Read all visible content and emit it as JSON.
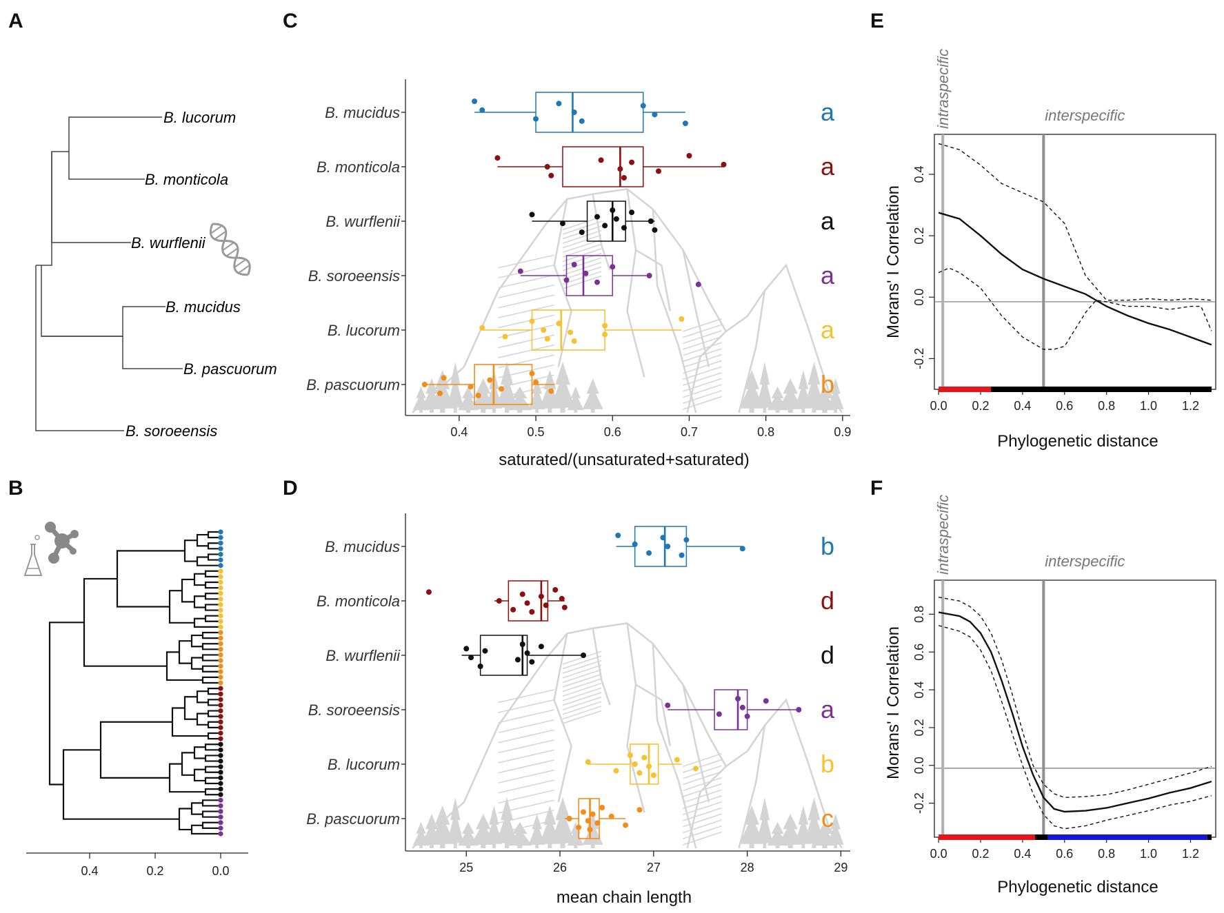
{
  "colors": {
    "mucidus": "#1f77b4",
    "monticola": "#8b1010",
    "wurflenii": "#111111",
    "soroeensis": "#7b3294",
    "lucorum": "#f5c232",
    "pascuorum": "#f28c1a",
    "sig_red": "#e8141c",
    "sig_blue": "#1515e0",
    "sig_black": "#000000",
    "ref_line": "#909090"
  },
  "panels": {
    "A": {
      "letter": "A"
    },
    "B": {
      "letter": "B"
    },
    "C": {
      "letter": "C"
    },
    "D": {
      "letter": "D"
    },
    "E": {
      "letter": "E"
    },
    "F": {
      "letter": "F"
    }
  },
  "tree_A": {
    "species": [
      {
        "key": "lucorum",
        "label": "B. lucorum"
      },
      {
        "key": "monticola",
        "label": "B. monticola"
      },
      {
        "key": "wurflenii",
        "label": "B. wurflenii"
      },
      {
        "key": "mucidus",
        "label": "B. mucidus"
      },
      {
        "key": "pascuorum",
        "label": "B. pascuorum"
      },
      {
        "key": "soroeensis",
        "label": "B. soroeensis"
      }
    ],
    "icon": "dna-helix-icon"
  },
  "tree_B": {
    "icon": "molecule-flask-icon",
    "x_ticks": [
      "0.4",
      "0.2",
      "0.0"
    ],
    "tip_groups": [
      {
        "key": "mucidus",
        "count": 7
      },
      {
        "key": "lucorum",
        "count": 11
      },
      {
        "key": "pascuorum",
        "count": 10
      },
      {
        "key": "monticola",
        "count": 10
      },
      {
        "key": "wurflenii",
        "count": 10
      },
      {
        "key": "soroeensis",
        "count": 7
      }
    ]
  },
  "chart_data": [
    {
      "id": "C",
      "type": "box",
      "xlabel": "saturated/(unsaturated+saturated)",
      "xlim": [
        0.33,
        0.91
      ],
      "x_ticks": [
        0.4,
        0.5,
        0.6,
        0.7,
        0.8,
        0.9
      ],
      "x_tick_labels": [
        "0.4",
        "0.5",
        "0.6",
        "0.7",
        "0.8",
        "0.9"
      ],
      "series": [
        {
          "key": "mucidus",
          "name": "B. mucidus",
          "letter": "a",
          "box": {
            "wl": 0.42,
            "q1": 0.5,
            "med": 0.548,
            "q3": 0.64,
            "wh": 0.695
          },
          "points": [
            0.42,
            0.43,
            0.5,
            0.53,
            0.55,
            0.56,
            0.64,
            0.655,
            0.695
          ]
        },
        {
          "key": "monticola",
          "name": "B. monticola",
          "letter": "a",
          "box": {
            "wl": 0.45,
            "q1": 0.535,
            "med": 0.61,
            "q3": 0.64,
            "wh": 0.745
          },
          "points": [
            0.45,
            0.515,
            0.52,
            0.585,
            0.61,
            0.615,
            0.625,
            0.66,
            0.7,
            0.745
          ]
        },
        {
          "key": "wurflenii",
          "name": "B. wurflenii",
          "letter": "a",
          "box": {
            "wl": 0.495,
            "q1": 0.567,
            "med": 0.6,
            "q3": 0.617,
            "wh": 0.655
          },
          "points": [
            0.495,
            0.535,
            0.56,
            0.58,
            0.59,
            0.6,
            0.605,
            0.615,
            0.625,
            0.65,
            0.655
          ]
        },
        {
          "key": "soroeensis",
          "name": "B. soroeensis",
          "letter": "a",
          "box": {
            "wl": 0.48,
            "q1": 0.54,
            "med": 0.562,
            "q3": 0.6,
            "wh": 0.648
          },
          "points": [
            0.48,
            0.54,
            0.55,
            0.565,
            0.58,
            0.6,
            0.648,
            0.712
          ]
        },
        {
          "key": "lucorum",
          "name": "B. lucorum",
          "letter": "a",
          "box": {
            "wl": 0.43,
            "q1": 0.495,
            "med": 0.533,
            "q3": 0.59,
            "wh": 0.69
          },
          "points": [
            0.43,
            0.46,
            0.495,
            0.51,
            0.515,
            0.53,
            0.545,
            0.55,
            0.59,
            0.59,
            0.69
          ]
        },
        {
          "key": "pascuorum",
          "name": "B. pascuorum",
          "letter": "b",
          "box": {
            "wl": 0.355,
            "q1": 0.42,
            "med": 0.445,
            "q3": 0.495,
            "wh": 0.525
          },
          "points": [
            0.355,
            0.375,
            0.38,
            0.415,
            0.425,
            0.44,
            0.455,
            0.495,
            0.5,
            0.52
          ]
        }
      ]
    },
    {
      "id": "D",
      "type": "box",
      "xlabel": "mean chain length",
      "xlim": [
        24.35,
        29.1
      ],
      "x_ticks": [
        25,
        26,
        27,
        28,
        29
      ],
      "x_tick_labels": [
        "25",
        "26",
        "27",
        "28",
        "29"
      ],
      "series": [
        {
          "key": "mucidus",
          "name": "B. mucidus",
          "letter": "b",
          "box": {
            "wl": 26.6,
            "q1": 26.8,
            "med": 27.12,
            "q3": 27.35,
            "wh": 27.95
          },
          "points": [
            26.62,
            26.8,
            26.95,
            27.1,
            27.15,
            27.3,
            27.35,
            27.95
          ]
        },
        {
          "key": "monticola",
          "name": "B. monticola",
          "letter": "d",
          "box": {
            "wl": 25.3,
            "q1": 25.45,
            "med": 25.8,
            "q3": 25.87,
            "wh": 26.05
          },
          "points": [
            24.6,
            25.35,
            25.5,
            25.6,
            25.65,
            25.7,
            25.8,
            25.85,
            25.95,
            26.02,
            26.05
          ]
        },
        {
          "key": "wurflenii",
          "name": "B. wurflenii",
          "letter": "d",
          "box": {
            "wl": 24.95,
            "q1": 25.15,
            "med": 25.6,
            "q3": 25.65,
            "wh": 26.25
          },
          "points": [
            25.0,
            25.05,
            25.15,
            25.2,
            25.55,
            25.6,
            25.65,
            25.7,
            25.8,
            26.25
          ]
        },
        {
          "key": "soroeensis",
          "name": "B. soroeensis",
          "letter": "a",
          "box": {
            "wl": 27.15,
            "q1": 27.65,
            "med": 27.9,
            "q3": 28.0,
            "wh": 28.55
          },
          "points": [
            27.15,
            27.7,
            27.9,
            27.95,
            28.0,
            28.2,
            28.55
          ]
        },
        {
          "key": "lucorum",
          "name": "B. lucorum",
          "letter": "b",
          "box": {
            "wl": 26.3,
            "q1": 26.75,
            "med": 26.95,
            "q3": 27.05,
            "wh": 27.3
          },
          "points": [
            26.3,
            26.6,
            26.75,
            26.8,
            26.85,
            26.9,
            26.95,
            27.0,
            27.25,
            27.45
          ]
        },
        {
          "key": "pascuorum",
          "name": "B. pascuorum",
          "letter": "c",
          "box": {
            "wl": 26.05,
            "q1": 26.2,
            "med": 26.32,
            "q3": 26.42,
            "wh": 26.7
          },
          "points": [
            26.1,
            26.2,
            26.25,
            26.3,
            26.32,
            26.35,
            26.4,
            26.45,
            26.55,
            26.7,
            26.85
          ]
        }
      ]
    },
    {
      "id": "E",
      "type": "line",
      "xlabel": "Phylogenetic distance",
      "ylabel": "Morans' I Correlation",
      "xlim": [
        -0.02,
        1.32
      ],
      "ylim": [
        -0.3,
        0.53
      ],
      "x_ticks": [
        0.0,
        0.2,
        0.4,
        0.6,
        0.8,
        1.0,
        1.2
      ],
      "x_tick_labels": [
        "0.0",
        "0.2",
        "0.4",
        "0.6",
        "0.8",
        "1.0",
        "1.2"
      ],
      "y_ticks": [
        -0.2,
        0.0,
        0.2,
        0.4
      ],
      "y_tick_labels": [
        "-0.2",
        "0.0",
        "0.2",
        "0.4"
      ],
      "hline": -0.015,
      "vlines": [
        {
          "x": 0.02,
          "label": "intraspecific",
          "color": "#b0b0b0"
        },
        {
          "x": 0.5,
          "label": "interspecific",
          "color": "#909090"
        }
      ],
      "series": [
        {
          "name": "observed",
          "style": "solid",
          "x": [
            0.0,
            0.1,
            0.2,
            0.3,
            0.4,
            0.5,
            0.6,
            0.7,
            0.8,
            0.9,
            1.0,
            1.1,
            1.2,
            1.3
          ],
          "y": [
            0.275,
            0.255,
            0.2,
            0.14,
            0.09,
            0.06,
            0.035,
            0.01,
            -0.03,
            -0.06,
            -0.085,
            -0.105,
            -0.13,
            -0.155
          ]
        },
        {
          "name": "upper",
          "style": "dashed",
          "x": [
            0.0,
            0.1,
            0.2,
            0.3,
            0.4,
            0.5,
            0.6,
            0.7,
            0.8,
            0.9,
            1.0,
            1.1,
            1.2,
            1.3
          ],
          "y": [
            0.5,
            0.48,
            0.43,
            0.37,
            0.34,
            0.31,
            0.24,
            0.07,
            -0.01,
            -0.01,
            -0.005,
            -0.01,
            -0.005,
            -0.01
          ]
        },
        {
          "name": "lower",
          "style": "dashed",
          "x": [
            0.0,
            0.05,
            0.1,
            0.2,
            0.3,
            0.4,
            0.5,
            0.55,
            0.6,
            0.7,
            0.75,
            0.8,
            0.9,
            1.0,
            1.1,
            1.2,
            1.25,
            1.3
          ],
          "y": [
            0.08,
            0.095,
            0.08,
            0.03,
            -0.06,
            -0.13,
            -0.17,
            -0.17,
            -0.16,
            -0.05,
            -0.01,
            -0.015,
            -0.03,
            -0.03,
            -0.04,
            -0.03,
            -0.03,
            -0.11
          ]
        }
      ],
      "significance_bar": [
        {
          "from": 0.0,
          "to": 0.25,
          "color": "#e8141c"
        },
        {
          "from": 0.25,
          "to": 1.3,
          "color": "#000000"
        }
      ]
    },
    {
      "id": "F",
      "type": "line",
      "xlabel": "Phylogenetic distance",
      "ylabel": "Morans' I Correlation",
      "xlim": [
        -0.02,
        1.32
      ],
      "ylim": [
        -0.38,
        0.98
      ],
      "x_ticks": [
        0.0,
        0.2,
        0.4,
        0.6,
        0.8,
        1.0,
        1.2
      ],
      "x_tick_labels": [
        "0.0",
        "0.2",
        "0.4",
        "0.6",
        "0.8",
        "1.0",
        "1.2"
      ],
      "y_ticks": [
        -0.2,
        0.0,
        0.2,
        0.4,
        0.6,
        0.8
      ],
      "y_tick_labels": [
        "-0.2",
        "0.0",
        "0.2",
        "0.4",
        "0.6",
        "0.8"
      ],
      "hline": -0.015,
      "vlines": [
        {
          "x": 0.02,
          "label": "intraspecific",
          "color": "#b0b0b0"
        },
        {
          "x": 0.5,
          "label": "interspecific",
          "color": "#909090"
        }
      ],
      "series": [
        {
          "name": "observed",
          "style": "solid",
          "x": [
            0.0,
            0.1,
            0.15,
            0.2,
            0.25,
            0.3,
            0.35,
            0.4,
            0.45,
            0.5,
            0.55,
            0.6,
            0.7,
            0.8,
            0.9,
            1.0,
            1.1,
            1.2,
            1.3
          ],
          "y": [
            0.81,
            0.79,
            0.76,
            0.7,
            0.6,
            0.45,
            0.28,
            0.1,
            -0.05,
            -0.17,
            -0.23,
            -0.245,
            -0.24,
            -0.225,
            -0.2,
            -0.175,
            -0.145,
            -0.12,
            -0.085
          ]
        },
        {
          "name": "upper",
          "style": "dashed",
          "x": [
            0.0,
            0.1,
            0.15,
            0.2,
            0.25,
            0.3,
            0.35,
            0.4,
            0.45,
            0.5,
            0.55,
            0.6,
            0.7,
            0.8,
            0.9,
            1.0,
            1.1,
            1.2,
            1.3
          ],
          "y": [
            0.89,
            0.87,
            0.84,
            0.79,
            0.7,
            0.56,
            0.38,
            0.18,
            0.0,
            -0.1,
            -0.15,
            -0.17,
            -0.165,
            -0.155,
            -0.13,
            -0.1,
            -0.07,
            -0.04,
            -0.005
          ]
        },
        {
          "name": "lower",
          "style": "dashed",
          "x": [
            0.0,
            0.1,
            0.15,
            0.2,
            0.25,
            0.3,
            0.35,
            0.4,
            0.45,
            0.5,
            0.55,
            0.6,
            0.7,
            0.8,
            0.9,
            1.0,
            1.1,
            1.2,
            1.3
          ],
          "y": [
            0.74,
            0.71,
            0.68,
            0.61,
            0.5,
            0.34,
            0.17,
            0.0,
            -0.15,
            -0.26,
            -0.32,
            -0.335,
            -0.32,
            -0.29,
            -0.265,
            -0.24,
            -0.21,
            -0.19,
            -0.16
          ]
        }
      ],
      "significance_bar": [
        {
          "from": 0.0,
          "to": 0.46,
          "color": "#e8141c"
        },
        {
          "from": 0.46,
          "to": 0.52,
          "color": "#000000"
        },
        {
          "from": 0.52,
          "to": 1.28,
          "color": "#1515e0"
        },
        {
          "from": 1.28,
          "to": 1.3,
          "color": "#000000"
        }
      ]
    }
  ]
}
